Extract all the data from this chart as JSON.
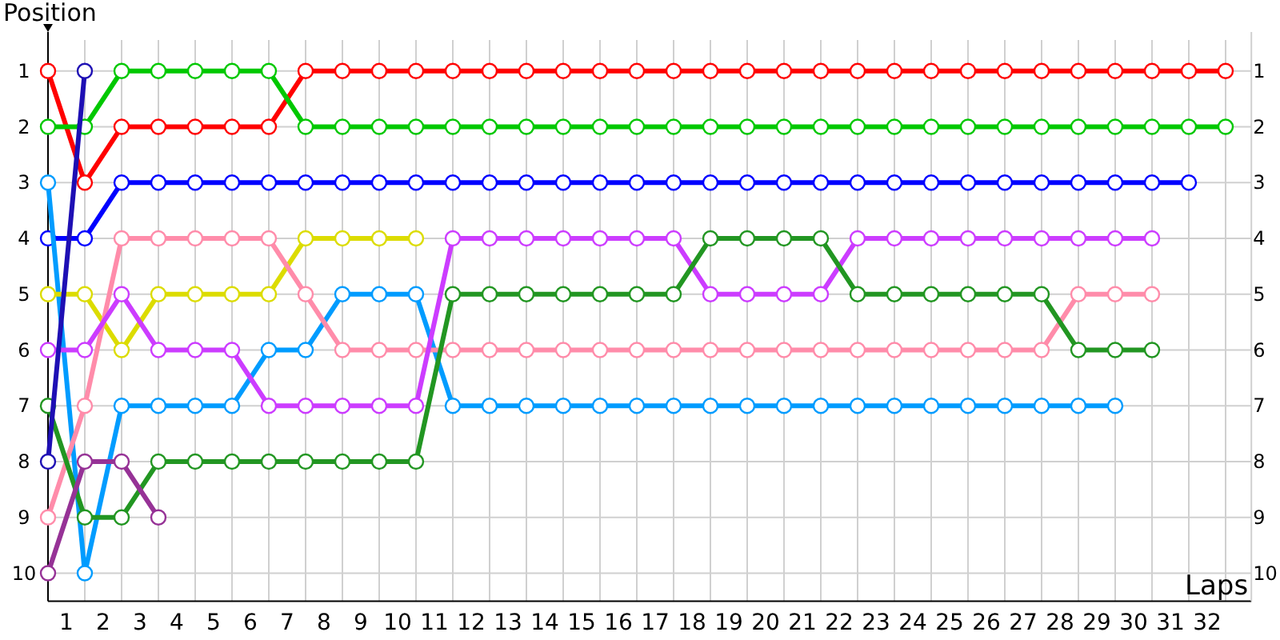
{
  "chart_data": {
    "type": "line",
    "xlabel": "Laps",
    "ylabel": "Position",
    "marker": "circle",
    "line_style": "solid",
    "grid": true,
    "xlim": [
      0,
      32.7
    ],
    "xticks": [
      {
        "value": 1,
        "label": null
      },
      {
        "value": 2,
        "label": null
      },
      {
        "value": 3,
        "label": null
      },
      {
        "value": 4,
        "label": null
      },
      {
        "value": 5,
        "label": null
      },
      {
        "value": 6,
        "label": null
      },
      {
        "value": 7,
        "label": null
      },
      {
        "value": 8,
        "label": null
      },
      {
        "value": 9,
        "label": null
      },
      {
        "value": 10,
        "label": null
      },
      {
        "value": 11,
        "label": null
      },
      {
        "value": 12,
        "label": null
      },
      {
        "value": 13,
        "label": null
      },
      {
        "value": 14,
        "label": null
      },
      {
        "value": 15,
        "label": null
      },
      {
        "value": 16,
        "label": null
      },
      {
        "value": 17,
        "label": null
      },
      {
        "value": 18,
        "label": null
      },
      {
        "value": 19,
        "label": null
      },
      {
        "value": 20,
        "label": null
      },
      {
        "value": 21,
        "label": null
      },
      {
        "value": 22,
        "label": null
      },
      {
        "value": 23,
        "label": null
      },
      {
        "value": 24,
        "label": null
      },
      {
        "value": 25,
        "label": null
      },
      {
        "value": 26,
        "label": null
      },
      {
        "value": 27,
        "label": null
      },
      {
        "value": 28,
        "label": null
      },
      {
        "value": 29,
        "label": null
      },
      {
        "value": 30,
        "label": null
      },
      {
        "value": 31,
        "label": null
      },
      {
        "value": 32,
        "label": null
      },
      {
        "value": 0.5,
        "label": "1"
      },
      {
        "value": 1.5,
        "label": "2"
      },
      {
        "value": 2.5,
        "label": "3"
      },
      {
        "value": 3.5,
        "label": "4"
      },
      {
        "value": 4.5,
        "label": "5"
      },
      {
        "value": 5.5,
        "label": "6"
      },
      {
        "value": 6.5,
        "label": "7"
      },
      {
        "value": 7.5,
        "label": "8"
      },
      {
        "value": 8.5,
        "label": "9"
      },
      {
        "value": 9.5,
        "label": "10"
      },
      {
        "value": 10.5,
        "label": "11"
      },
      {
        "value": 11.5,
        "label": "12"
      },
      {
        "value": 12.5,
        "label": "13"
      },
      {
        "value": 13.5,
        "label": "14"
      },
      {
        "value": 14.5,
        "label": "15"
      },
      {
        "value": 15.5,
        "label": "16"
      },
      {
        "value": 16.5,
        "label": "17"
      },
      {
        "value": 17.5,
        "label": "18"
      },
      {
        "value": 18.5,
        "label": "19"
      },
      {
        "value": 19.5,
        "label": "20"
      },
      {
        "value": 20.5,
        "label": "21"
      },
      {
        "value": 21.5,
        "label": "22"
      },
      {
        "value": 22.5,
        "label": "23"
      },
      {
        "value": 23.5,
        "label": "24"
      },
      {
        "value": 24.5,
        "label": "25"
      },
      {
        "value": 25.5,
        "label": "26"
      },
      {
        "value": 26.5,
        "label": "27"
      },
      {
        "value": 27.5,
        "label": "28"
      },
      {
        "value": 28.5,
        "label": "29"
      },
      {
        "value": 29.5,
        "label": "30"
      },
      {
        "value": 30.5,
        "label": "31"
      },
      {
        "value": 31.5,
        "label": "32"
      }
    ],
    "ylim": [
      10.5,
      0.3
    ],
    "yticks": [
      1,
      2,
      3,
      4,
      5,
      6,
      7,
      8,
      9,
      10
    ],
    "y2lim": [
      10.5,
      0.3
    ],
    "y2ticks": [
      1,
      2,
      3,
      4,
      5,
      6,
      7,
      8,
      9,
      10
    ],
    "series": [
      {
        "color": "#ff0000",
        "x": [
          0,
          1,
          2,
          3,
          4,
          5,
          6,
          7,
          8,
          9,
          10,
          11,
          12,
          13,
          14,
          15,
          16,
          17,
          18,
          19,
          20,
          21,
          22,
          23,
          24,
          25,
          26,
          27,
          28,
          29,
          30,
          31,
          32
        ],
        "values": [
          1,
          3,
          2,
          2,
          2,
          2,
          2,
          1,
          1,
          1,
          1,
          1,
          1,
          1,
          1,
          1,
          1,
          1,
          1,
          1,
          1,
          1,
          1,
          1,
          1,
          1,
          1,
          1,
          1,
          1,
          1,
          1,
          1
        ]
      },
      {
        "color": "#00c800",
        "x": [
          0,
          1,
          2,
          3,
          4,
          5,
          6,
          7,
          8,
          9,
          10,
          11,
          12,
          13,
          14,
          15,
          16,
          17,
          18,
          19,
          20,
          21,
          22,
          23,
          24,
          25,
          26,
          27,
          28,
          29,
          30,
          31,
          32
        ],
        "values": [
          2,
          2,
          1,
          1,
          1,
          1,
          1,
          2,
          2,
          2,
          2,
          2,
          2,
          2,
          2,
          2,
          2,
          2,
          2,
          2,
          2,
          2,
          2,
          2,
          2,
          2,
          2,
          2,
          2,
          2,
          2,
          2,
          2
        ]
      },
      {
        "color": "#0000ff",
        "x": [
          0,
          1,
          2,
          3,
          4,
          5,
          6,
          7,
          8,
          9,
          10,
          11,
          12,
          13,
          14,
          15,
          16,
          17,
          18,
          19,
          20,
          21,
          22,
          23,
          24,
          25,
          26,
          27,
          28,
          29,
          30,
          31
        ],
        "values": [
          4,
          4,
          3,
          3,
          3,
          3,
          3,
          3,
          3,
          3,
          3,
          3,
          3,
          3,
          3,
          3,
          3,
          3,
          3,
          3,
          3,
          3,
          3,
          3,
          3,
          3,
          3,
          3,
          3,
          3,
          3,
          3
        ]
      },
      {
        "color": "#009cff",
        "x": [
          0,
          1,
          2,
          3,
          4,
          5,
          6,
          7,
          8,
          9,
          10,
          11,
          12,
          13,
          14,
          15,
          16,
          17,
          18,
          19,
          20,
          21,
          22,
          23,
          24,
          25,
          26,
          27,
          28,
          29
        ],
        "values": [
          3,
          10,
          7,
          7,
          7,
          7,
          6,
          6,
          5,
          5,
          5,
          7,
          7,
          7,
          7,
          7,
          7,
          7,
          7,
          7,
          7,
          7,
          7,
          7,
          7,
          7,
          7,
          7,
          7,
          7
        ]
      },
      {
        "color": "#dcdc00",
        "x": [
          0,
          1,
          2,
          3,
          4,
          5,
          6,
          7,
          8,
          9,
          10
        ],
        "values": [
          5,
          5,
          6,
          5,
          5,
          5,
          5,
          4,
          4,
          4,
          4
        ]
      },
      {
        "color": "#ff8caa",
        "x": [
          0,
          1,
          2,
          3,
          4,
          5,
          6,
          7,
          8,
          9,
          10,
          11,
          12,
          13,
          14,
          15,
          16,
          17,
          18,
          19,
          20,
          21,
          22,
          23,
          24,
          25,
          26,
          27,
          28,
          29,
          30
        ],
        "values": [
          9,
          7,
          4,
          4,
          4,
          4,
          4,
          5,
          6,
          6,
          6,
          6,
          6,
          6,
          6,
          6,
          6,
          6,
          6,
          6,
          6,
          6,
          6,
          6,
          6,
          6,
          6,
          6,
          5,
          5,
          5
        ]
      },
      {
        "color": "#cc3cff",
        "x": [
          0,
          1,
          2,
          3,
          4,
          5,
          6,
          7,
          8,
          9,
          10,
          11,
          12,
          13,
          14,
          15,
          16,
          17,
          18,
          19,
          20,
          21,
          22,
          23,
          24,
          25,
          26,
          27,
          28,
          29,
          30
        ],
        "values": [
          6,
          6,
          5,
          6,
          6,
          6,
          7,
          7,
          7,
          7,
          7,
          4,
          4,
          4,
          4,
          4,
          4,
          4,
          5,
          5,
          5,
          5,
          4,
          4,
          4,
          4,
          4,
          4,
          4,
          4,
          4
        ]
      },
      {
        "color": "#229622",
        "x": [
          0,
          1,
          2,
          3,
          4,
          5,
          6,
          7,
          8,
          9,
          10,
          11,
          12,
          13,
          14,
          15,
          16,
          17,
          18,
          19,
          20,
          21,
          22,
          23,
          24,
          25,
          26,
          27,
          28,
          29,
          30
        ],
        "values": [
          7,
          9,
          9,
          8,
          8,
          8,
          8,
          8,
          8,
          8,
          8,
          5,
          5,
          5,
          5,
          5,
          5,
          5,
          4,
          4,
          4,
          4,
          5,
          5,
          5,
          5,
          5,
          5,
          6,
          6,
          6
        ]
      },
      {
        "color": "#963296",
        "x": [
          0,
          1,
          2,
          3
        ],
        "values": [
          10,
          8,
          8,
          9
        ]
      },
      {
        "color": "#1e0fb4",
        "x": [
          0,
          1
        ],
        "values": [
          8,
          1
        ]
      }
    ]
  }
}
